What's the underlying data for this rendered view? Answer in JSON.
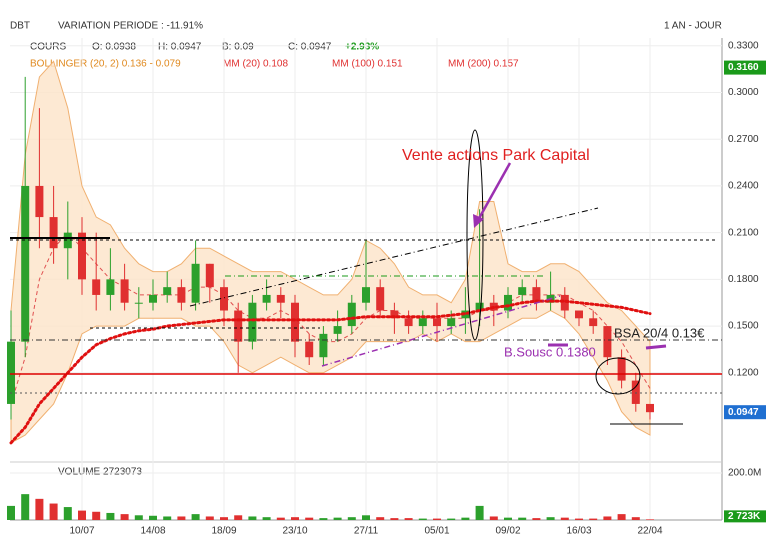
{
  "header": {
    "symbol": "DBT",
    "variation": "VARIATION PERIODE : -11.91%",
    "period": "1 AN - JOUR"
  },
  "legend": {
    "cours": "COURS",
    "open": "O: 0.0938",
    "high": "H: 0.0947",
    "low": "B: 0.09",
    "close": "C: 0.0947",
    "change": "+2.93%",
    "bollinger": "BOLLINGER (20, 2)  0.136 - 0.079",
    "mm20": "MM (20)  0.108",
    "mm100": "MM (100)  0.151",
    "mm200": "MM (200)  0.157",
    "volume": "VOLUME  2723073"
  },
  "annotations": {
    "vente": "Vente actions Park Capital",
    "bsousc": "B.Sousc  0.1380",
    "bsa": "BSA 20/4 0.13€"
  },
  "chart_data": {
    "type": "candlestick",
    "categories": [
      null,
      null,
      null,
      null,
      null,
      "10/07",
      null,
      null,
      null,
      null,
      "14/08",
      null,
      null,
      null,
      null,
      "18/09",
      null,
      null,
      null,
      null,
      "23/10",
      null,
      null,
      null,
      null,
      "27/11",
      null,
      null,
      null,
      null,
      "05/01",
      null,
      null,
      null,
      null,
      "09/02",
      null,
      null,
      null,
      null,
      "16/03",
      null,
      null,
      null,
      null,
      "22/04"
    ],
    "open": [
      0.1,
      0.14,
      0.24,
      0.22,
      0.2,
      0.21,
      0.18,
      0.17,
      0.18,
      0.165,
      0.165,
      0.17,
      0.175,
      0.165,
      0.19,
      0.175,
      0.16,
      0.14,
      0.165,
      0.17,
      0.165,
      0.14,
      0.13,
      0.145,
      0.15,
      0.165,
      0.175,
      0.16,
      0.155,
      0.15,
      0.155,
      0.15,
      0.155,
      0.16,
      0.165,
      0.16,
      0.17,
      0.175,
      0.165,
      0.17,
      0.16,
      0.155,
      0.15,
      0.13,
      0.115,
      0.1
    ],
    "high": [
      0.16,
      0.31,
      0.29,
      0.24,
      0.23,
      0.22,
      0.21,
      0.2,
      0.19,
      0.175,
      0.18,
      0.185,
      0.18,
      0.205,
      0.19,
      0.18,
      0.165,
      0.17,
      0.18,
      0.175,
      0.17,
      0.145,
      0.15,
      0.16,
      0.17,
      0.205,
      0.18,
      0.165,
      0.16,
      0.16,
      0.165,
      0.16,
      0.175,
      0.225,
      0.17,
      0.175,
      0.18,
      0.18,
      0.185,
      0.175,
      0.16,
      0.16,
      0.15,
      0.135,
      0.12,
      0.1
    ],
    "low": [
      0.09,
      0.13,
      0.2,
      0.19,
      0.18,
      0.17,
      0.16,
      0.16,
      0.16,
      0.155,
      0.16,
      0.165,
      0.16,
      0.16,
      0.165,
      0.15,
      0.12,
      0.135,
      0.16,
      0.155,
      0.13,
      0.125,
      0.125,
      0.14,
      0.145,
      0.16,
      0.155,
      0.145,
      0.145,
      0.145,
      0.14,
      0.145,
      0.145,
      0.15,
      0.15,
      0.155,
      0.165,
      0.16,
      0.16,
      0.155,
      0.15,
      0.145,
      0.125,
      0.11,
      0.095,
      0.09
    ],
    "close": [
      0.14,
      0.24,
      0.22,
      0.2,
      0.21,
      0.18,
      0.17,
      0.18,
      0.165,
      0.165,
      0.17,
      0.175,
      0.165,
      0.19,
      0.175,
      0.16,
      0.14,
      0.165,
      0.17,
      0.165,
      0.14,
      0.13,
      0.145,
      0.15,
      0.165,
      0.175,
      0.16,
      0.155,
      0.15,
      0.155,
      0.15,
      0.155,
      0.16,
      0.165,
      0.16,
      0.17,
      0.175,
      0.165,
      0.17,
      0.16,
      0.155,
      0.15,
      0.13,
      0.115,
      0.1,
      0.0947
    ],
    "bollinger_upper": [
      0.16,
      0.26,
      0.31,
      0.32,
      0.29,
      0.24,
      0.22,
      0.215,
      0.2,
      0.19,
      0.185,
      0.185,
      0.19,
      0.2,
      0.2,
      0.195,
      0.19,
      0.185,
      0.185,
      0.185,
      0.18,
      0.175,
      0.17,
      0.17,
      0.18,
      0.205,
      0.2,
      0.19,
      0.175,
      0.17,
      0.17,
      0.165,
      0.18,
      0.23,
      0.23,
      0.19,
      0.185,
      0.185,
      0.19,
      0.19,
      0.185,
      0.175,
      0.165,
      0.16,
      0.15,
      0.14
    ],
    "bollinger_lower": [
      0.075,
      0.08,
      0.09,
      0.1,
      0.12,
      0.145,
      0.15,
      0.15,
      0.15,
      0.155,
      0.155,
      0.155,
      0.155,
      0.15,
      0.15,
      0.14,
      0.125,
      0.12,
      0.125,
      0.13,
      0.125,
      0.12,
      0.12,
      0.125,
      0.13,
      0.14,
      0.14,
      0.14,
      0.14,
      0.145,
      0.14,
      0.145,
      0.14,
      0.14,
      0.145,
      0.15,
      0.155,
      0.155,
      0.16,
      0.155,
      0.145,
      0.13,
      0.115,
      0.095,
      0.085,
      0.08
    ],
    "mm20": [
      0.1,
      0.13,
      0.18,
      0.2,
      0.21,
      0.2,
      0.19,
      0.18,
      0.175,
      0.17,
      0.17,
      0.17,
      0.17,
      0.175,
      0.175,
      0.17,
      0.16,
      0.155,
      0.155,
      0.16,
      0.155,
      0.145,
      0.14,
      0.14,
      0.145,
      0.155,
      0.16,
      0.16,
      0.155,
      0.155,
      0.155,
      0.155,
      0.155,
      0.16,
      0.16,
      0.165,
      0.17,
      0.17,
      0.17,
      0.17,
      0.165,
      0.16,
      0.15,
      0.14,
      0.125,
      0.11
    ],
    "mm100": [
      0.075,
      0.085,
      0.1,
      0.11,
      0.12,
      0.13,
      0.138,
      0.142,
      0.145,
      0.147,
      0.148,
      0.15,
      0.151,
      0.152,
      0.153,
      0.154,
      0.154,
      0.154,
      0.154,
      0.154,
      0.154,
      0.154,
      0.154,
      0.154,
      0.155,
      0.156,
      0.156,
      0.156,
      0.156,
      0.156,
      0.156,
      0.157,
      0.158,
      0.16,
      0.162,
      0.163,
      0.165,
      0.166,
      0.166,
      0.166,
      0.165,
      0.164,
      0.163,
      0.162,
      0.16,
      0.158
    ],
    "volume": [
      60000000,
      110000000,
      90000000,
      70000000,
      55000000,
      40000000,
      35000000,
      30000000,
      25000000,
      20000000,
      18000000,
      15000000,
      15000000,
      25000000,
      15000000,
      12000000,
      20000000,
      15000000,
      12000000,
      10000000,
      12000000,
      10000000,
      8000000,
      10000000,
      12000000,
      20000000,
      12000000,
      8000000,
      8000000,
      6000000,
      6000000,
      6000000,
      10000000,
      60000000,
      15000000,
      10000000,
      10000000,
      8000000,
      12000000,
      10000000,
      6000000,
      6000000,
      15000000,
      25000000,
      12000000,
      2723073
    ],
    "ylim": [
      0.064,
      0.335
    ],
    "yticks": [
      {
        "value": 0.33,
        "label": "0.3300"
      },
      {
        "value": 0.3,
        "label": "0.3000"
      },
      {
        "value": 0.27,
        "label": "0.2700"
      },
      {
        "value": 0.24,
        "label": "0.2400"
      },
      {
        "value": 0.21,
        "label": "0.2100"
      },
      {
        "value": 0.18,
        "label": "0.1800"
      },
      {
        "value": 0.15,
        "label": "0.1500"
      },
      {
        "value": 0.12,
        "label": "0.1200"
      }
    ],
    "vlim": [
      0,
      234000000
    ],
    "vticks": [
      {
        "value": 200000000,
        "label": "200.0M"
      }
    ],
    "flags": [
      {
        "value": 0.316,
        "label": "0.3160",
        "color": "#1a9a1a"
      },
      {
        "value": 0.0947,
        "label": "0.0947",
        "color": "#1f6fd1"
      }
    ],
    "volume_flag": {
      "value": 2723073,
      "label": "2 723K",
      "color": "#1a9a1a"
    },
    "up_color": "#2ca02c",
    "down_color": "#e03030",
    "band_color": "#fde3c8",
    "mm20_color": "#e05050",
    "mm100_color": "#e01010",
    "grid": true
  }
}
